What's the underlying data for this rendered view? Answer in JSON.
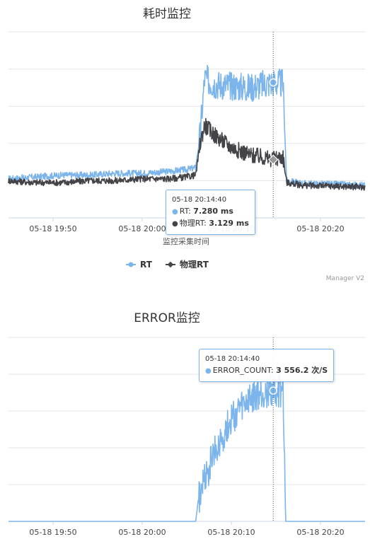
{
  "chart_data": [
    {
      "type": "line",
      "title": "耗时监控",
      "xlabel": "监控采集时间",
      "x_ticks": [
        "05-18 19:50",
        "05-18 20:00",
        "05-18 20:10",
        "05-18 20:20"
      ],
      "x_range": [
        "05-18 19:45",
        "05-18 20:25"
      ],
      "y_range": [
        0,
        10
      ],
      "grid": true,
      "legend_position": "bottom-center",
      "series": [
        {
          "name": "RT",
          "color": "#7cb5ec",
          "points": [
            [
              "19:45",
              2.1
            ],
            [
              "19:48",
              2.2
            ],
            [
              "19:51",
              2.3
            ],
            [
              "19:54",
              2.3
            ],
            [
              "19:57",
              2.4
            ],
            [
              "20:00",
              2.4
            ],
            [
              "20:03",
              2.5
            ],
            [
              "20:05",
              2.6
            ],
            [
              "20:06",
              2.7
            ],
            [
              "20:06.5",
              4.5
            ],
            [
              "20:07",
              7.5
            ],
            [
              "20:08",
              7.2
            ],
            [
              "20:10",
              7.1
            ],
            [
              "20:12",
              7.0
            ],
            [
              "20:14.7",
              7.28
            ],
            [
              "20:15.8",
              7.2
            ],
            [
              "20:16.2",
              2.0
            ],
            [
              "20:18",
              1.85
            ],
            [
              "20:22",
              1.8
            ],
            [
              "20:25",
              1.75
            ]
          ]
        },
        {
          "name": "物理RT",
          "color": "#434348",
          "points": [
            [
              "19:45",
              2.0
            ],
            [
              "19:48",
              1.9
            ],
            [
              "19:51",
              1.9
            ],
            [
              "19:54",
              2.0
            ],
            [
              "19:57",
              2.0
            ],
            [
              "20:00",
              2.1
            ],
            [
              "20:03",
              2.1
            ],
            [
              "20:05",
              2.2
            ],
            [
              "20:06",
              2.3
            ],
            [
              "20:06.5",
              4.0
            ],
            [
              "20:07",
              5.0
            ],
            [
              "20:08",
              4.5
            ],
            [
              "20:10",
              3.8
            ],
            [
              "20:12",
              3.4
            ],
            [
              "20:14.7",
              3.13
            ],
            [
              "20:15.8",
              3.3
            ],
            [
              "20:16.2",
              1.9
            ],
            [
              "20:18",
              1.75
            ],
            [
              "20:22",
              1.7
            ],
            [
              "20:25",
              1.65
            ]
          ]
        }
      ],
      "tooltip": {
        "time": "05-18 20:14:40",
        "rows": [
          {
            "label": "RT: ",
            "value": "7.280 ms"
          },
          {
            "label": "物理RT: ",
            "value": "3.129 ms"
          }
        ]
      },
      "credit": "Manager V2"
    },
    {
      "type": "line",
      "title": "ERROR监控",
      "x_ticks": [
        "05-18 19:50",
        "05-18 20:00",
        "05-18 20:10",
        "05-18 20:20"
      ],
      "x_range": [
        "05-18 19:45",
        "05-18 20:25"
      ],
      "y_range": [
        0,
        5000
      ],
      "grid": true,
      "series": [
        {
          "name": "ERROR_COUNT",
          "color": "#7cb5ec",
          "points": [
            [
              "19:45",
              0
            ],
            [
              "20:06",
              0
            ],
            [
              "20:06.3",
              600
            ],
            [
              "20:07",
              1100
            ],
            [
              "20:08",
              1800
            ],
            [
              "20:09",
              2300
            ],
            [
              "20:10",
              2800
            ],
            [
              "20:11",
              3050
            ],
            [
              "20:12",
              3250
            ],
            [
              "20:13",
              3400
            ],
            [
              "20:14",
              3500
            ],
            [
              "20:14.7",
              3556.2
            ],
            [
              "20:15.8",
              3550
            ],
            [
              "20:16.1",
              0
            ],
            [
              "20:25",
              0
            ]
          ]
        }
      ],
      "tooltip": {
        "time": "05-18 20:14:40",
        "rows": [
          {
            "label": "ERROR_COUNT: ",
            "value": "3 556.2 次/S"
          }
        ]
      }
    }
  ]
}
